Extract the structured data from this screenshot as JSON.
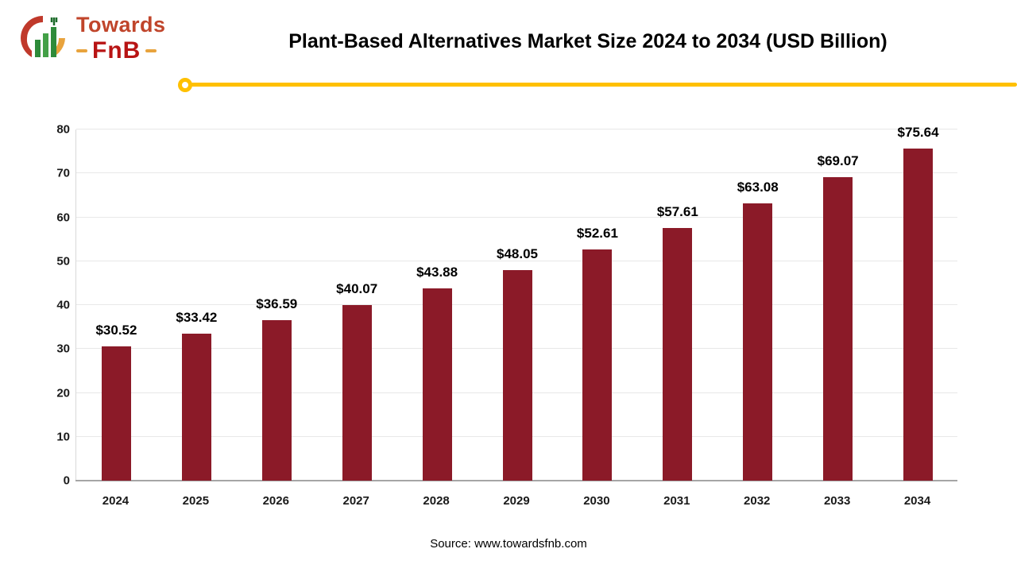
{
  "logo": {
    "line1": "Towards",
    "line2": "FnB"
  },
  "header": {
    "title": "Plant-Based Alternatives Market Size 2024 to 2034 (USD Billion)"
  },
  "colors": {
    "bar": "#8b1a28",
    "divider": "#ffc000",
    "gridline": "#e8e8e8"
  },
  "chart_data": {
    "type": "bar",
    "title": "Plant-Based Alternatives Market Size 2024 to 2034 (USD Billion)",
    "categories": [
      "2024",
      "2025",
      "2026",
      "2027",
      "2028",
      "2029",
      "2030",
      "2031",
      "2032",
      "2033",
      "2034"
    ],
    "values": [
      30.52,
      33.42,
      36.59,
      40.07,
      43.88,
      48.05,
      52.61,
      57.61,
      63.08,
      69.07,
      75.64
    ],
    "value_labels": [
      "$30.52",
      "$33.42",
      "$36.59",
      "$40.07",
      "$43.88",
      "$48.05",
      "$52.61",
      "$57.61",
      "$63.08",
      "$69.07",
      "$75.64"
    ],
    "xlabel": "",
    "ylabel": "",
    "ylim": [
      0,
      80
    ],
    "y_ticks": [
      0,
      10,
      20,
      30,
      40,
      50,
      60,
      70,
      80
    ],
    "grid": true,
    "legend": false
  },
  "footer": {
    "source": "Source: www.towardsfnb.com"
  }
}
